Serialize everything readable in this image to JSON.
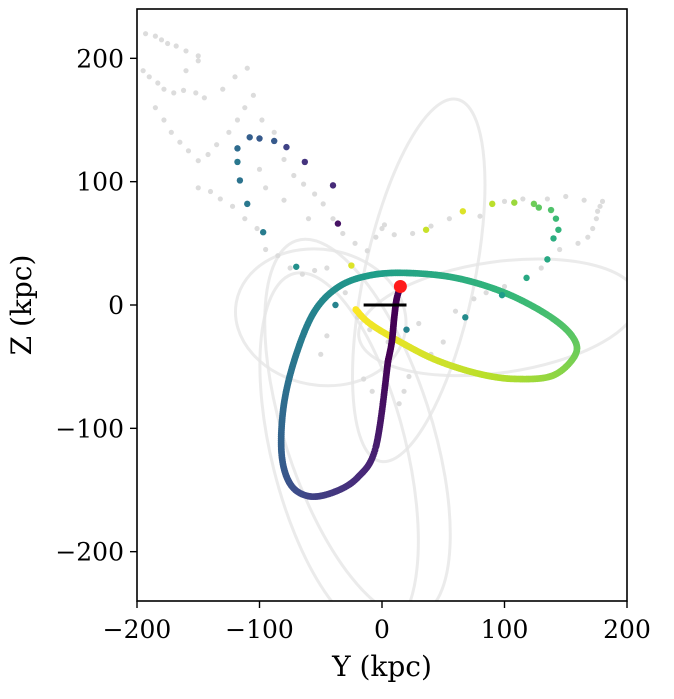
{
  "chart_data": {
    "type": "scatter",
    "title": "",
    "xlabel": "Y (kpc)",
    "ylabel": "Z (kpc)",
    "xlim": [
      -200,
      200
    ],
    "ylim": [
      -240,
      240
    ],
    "xticks": [
      -200,
      -100,
      0,
      100,
      200
    ],
    "yticks": [
      -200,
      -100,
      0,
      100,
      200
    ],
    "grid": false,
    "legend": "none",
    "colormap": "viridis",
    "colors": {
      "background_points": "#dcdcdc",
      "ghost_orbits": "#e6e6e6",
      "marker": "#ff1a1a",
      "segment": "#000000",
      "axes": "#000000"
    },
    "series": [
      {
        "kind": "main-orbit",
        "points": [
          [
            5,
            -45
          ],
          [
            -5,
            -115
          ],
          [
            -20,
            -140
          ],
          [
            -40,
            -152
          ],
          [
            -60,
            -155
          ],
          [
            -75,
            -145
          ],
          [
            -82,
            -120
          ],
          [
            -80,
            -80
          ],
          [
            -70,
            -40
          ],
          [
            -55,
            -5
          ],
          [
            -35,
            15
          ],
          [
            -10,
            24
          ],
          [
            20,
            26
          ],
          [
            60,
            22
          ],
          [
            100,
            10
          ],
          [
            135,
            -8
          ],
          [
            155,
            -25
          ],
          [
            158,
            -40
          ],
          [
            140,
            -57
          ],
          [
            110,
            -60
          ],
          [
            80,
            -56
          ],
          [
            45,
            -45
          ],
          [
            15,
            -30
          ],
          [
            -10,
            -15
          ],
          [
            -22,
            -3
          ]
        ],
        "color_fraction": [
          0.0,
          0.08,
          0.12,
          0.16,
          0.2,
          0.25,
          0.3,
          0.35,
          0.4,
          0.45,
          0.5,
          0.55,
          0.58,
          0.62,
          0.66,
          0.7,
          0.74,
          0.78,
          0.83,
          0.87,
          0.9,
          0.93,
          0.96,
          0.98,
          1.0
        ]
      },
      {
        "kind": "orbit-start-tail",
        "points": [
          [
            15,
            15
          ],
          [
            12,
            5
          ],
          [
            10,
            -10
          ],
          [
            8,
            -30
          ],
          [
            5,
            -45
          ]
        ],
        "color_fraction": [
          0.0,
          0.0,
          0.0,
          0.0,
          0.0
        ]
      },
      {
        "kind": "colored-stream-points",
        "points": [
          [
            -118,
            127
          ],
          [
            -118,
            116
          ],
          [
            -116,
            101
          ],
          [
            -110,
            82
          ],
          [
            -97,
            59
          ],
          [
            -108,
            136
          ],
          [
            -100,
            135
          ],
          [
            -88,
            133
          ],
          [
            -78,
            128
          ],
          [
            -63,
            116
          ],
          [
            -40,
            97
          ],
          [
            -36,
            66
          ],
          [
            -25,
            32
          ],
          [
            -70,
            31
          ],
          [
            -38,
            0
          ],
          [
            20,
            -20
          ],
          [
            36,
            61
          ],
          [
            66,
            76
          ],
          [
            68,
            -10
          ],
          [
            90,
            82
          ],
          [
            108,
            83
          ],
          [
            124,
            82
          ],
          [
            128,
            79
          ],
          [
            138,
            77
          ],
          [
            142,
            70
          ],
          [
            144,
            61
          ],
          [
            140,
            54
          ],
          [
            135,
            37
          ],
          [
            118,
            22
          ],
          [
            98,
            8
          ]
        ],
        "color_fraction": [
          0.35,
          0.4,
          0.38,
          0.4,
          0.42,
          0.3,
          0.28,
          0.28,
          0.2,
          0.15,
          0.12,
          0.05,
          0.95,
          0.5,
          0.45,
          0.45,
          0.92,
          0.95,
          0.48,
          0.9,
          0.85,
          0.78,
          0.75,
          0.72,
          0.68,
          0.65,
          0.62,
          0.6,
          0.6,
          0.55
        ]
      },
      {
        "kind": "background-stream-points",
        "points": [
          [
            -193,
            220
          ],
          [
            -185,
            218
          ],
          [
            -180,
            215
          ],
          [
            -175,
            212
          ],
          [
            -168,
            210
          ],
          [
            -160,
            206
          ],
          [
            -150,
            202
          ],
          [
            -195,
            190
          ],
          [
            -190,
            185
          ],
          [
            -183,
            180
          ],
          [
            -178,
            175
          ],
          [
            -170,
            172
          ],
          [
            -162,
            174
          ],
          [
            -152,
            172
          ],
          [
            -145,
            168
          ],
          [
            -185,
            160
          ],
          [
            -178,
            150
          ],
          [
            -172,
            140
          ],
          [
            -165,
            132
          ],
          [
            -158,
            125
          ],
          [
            -150,
            117
          ],
          [
            -142,
            122
          ],
          [
            -135,
            130
          ],
          [
            -125,
            140
          ],
          [
            -118,
            150
          ],
          [
            -112,
            160
          ],
          [
            -105,
            170
          ],
          [
            -98,
            150
          ],
          [
            -88,
            140
          ],
          [
            -80,
            118
          ],
          [
            -72,
            105
          ],
          [
            -64,
            98
          ],
          [
            -55,
            90
          ],
          [
            -48,
            82
          ],
          [
            -40,
            70
          ],
          [
            -32,
            58
          ],
          [
            -22,
            50
          ],
          [
            -12,
            44
          ],
          [
            -5,
            55
          ],
          [
            0,
            62
          ],
          [
            -100,
            110
          ],
          [
            -150,
            95
          ],
          [
            -140,
            92
          ],
          [
            -132,
            86
          ],
          [
            -122,
            80
          ],
          [
            -112,
            70
          ],
          [
            -102,
            62
          ],
          [
            -95,
            45
          ],
          [
            -85,
            40
          ],
          [
            -75,
            30
          ],
          [
            -65,
            25
          ],
          [
            -55,
            28
          ],
          [
            -45,
            30
          ],
          [
            -30,
            10
          ],
          [
            -20,
            -10
          ],
          [
            -10,
            -20
          ],
          [
            5,
            -30
          ],
          [
            -50,
            -40
          ],
          [
            -45,
            -25
          ],
          [
            -15,
            -60
          ],
          [
            -8,
            -70
          ],
          [
            0,
            -80
          ],
          [
            14,
            -80
          ],
          [
            18,
            -70
          ],
          [
            22,
            -58
          ],
          [
            40,
            -40
          ],
          [
            50,
            -30
          ],
          [
            30,
            -15
          ],
          [
            60,
            -5
          ],
          [
            75,
            5
          ],
          [
            85,
            10
          ],
          [
            100,
            15
          ],
          [
            130,
            30
          ],
          [
            145,
            45
          ],
          [
            160,
            50
          ],
          [
            168,
            55
          ],
          [
            172,
            62
          ],
          [
            175,
            70
          ],
          [
            176,
            76
          ],
          [
            178,
            80
          ],
          [
            180,
            84
          ],
          [
            165,
            85
          ],
          [
            150,
            88
          ],
          [
            135,
            86
          ],
          [
            115,
            86
          ],
          [
            100,
            84
          ],
          [
            80,
            72
          ],
          [
            55,
            70
          ],
          [
            40,
            64
          ],
          [
            25,
            58
          ],
          [
            10,
            57
          ],
          [
            2,
            65
          ],
          [
            -60,
            70
          ],
          [
            -80,
            85
          ],
          [
            -95,
            95
          ],
          [
            -130,
            175
          ],
          [
            -120,
            185
          ],
          [
            -110,
            192
          ],
          [
            -160,
            190
          ],
          [
            -150,
            198
          ]
        ]
      },
      {
        "kind": "ghost-orbits",
        "orbits": [
          {
            "cx": -20,
            "cy": -100,
            "rx": 60,
            "ry": 160,
            "rot": -18
          },
          {
            "cx": -35,
            "cy": -120,
            "rx": 55,
            "ry": 150,
            "rot": -14
          },
          {
            "cx": 95,
            "cy": -10,
            "rx": 115,
            "ry": 45,
            "rot": -8
          },
          {
            "cx": 30,
            "cy": 20,
            "rx": 45,
            "ry": 150,
            "rot": 12
          },
          {
            "cx": -50,
            "cy": -10,
            "rx": 70,
            "ry": 55,
            "rot": 10
          }
        ]
      },
      {
        "kind": "present-position-marker",
        "points": [
          [
            15,
            15
          ]
        ]
      },
      {
        "kind": "line-segment",
        "points": [
          [
            -15,
            0
          ],
          [
            20,
            0
          ]
        ]
      }
    ]
  }
}
